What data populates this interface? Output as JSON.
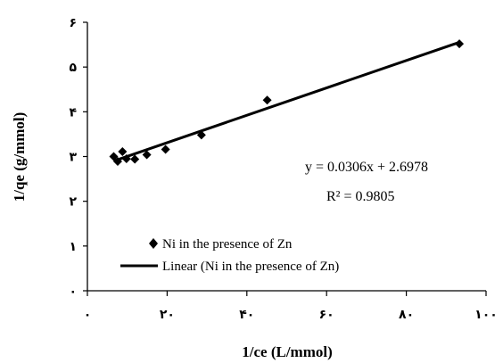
{
  "chart_data": {
    "type": "scatter",
    "xlabel": "1/ce (L/mmol)",
    "ylabel": "1/qe (g/mmol)",
    "xlim": [
      0,
      100
    ],
    "ylim": [
      0,
      6
    ],
    "x_ticks": [
      0,
      20,
      40,
      60,
      80,
      100
    ],
    "x_tick_labels": [
      "۰",
      "۲۰",
      "۴۰",
      "۶۰",
      "۸۰",
      "۱۰۰"
    ],
    "y_ticks": [
      0,
      1,
      2,
      3,
      4,
      5,
      6
    ],
    "y_tick_labels": [
      "۰",
      "۱",
      "۲",
      "۳",
      "۴",
      "۵",
      "۶"
    ],
    "grid": false,
    "legend_position": "bottom-left",
    "series": [
      {
        "name": "Ni in the presence of Zn",
        "marker": "diamond",
        "color": "#000000",
        "x": [
          6.6,
          7.6,
          8.8,
          9.8,
          11.9,
          14.9,
          19.6,
          28.6,
          45.1,
          93.3
        ],
        "y": [
          3.0,
          2.89,
          3.11,
          2.95,
          2.94,
          3.04,
          3.16,
          3.48,
          4.26,
          5.52
        ]
      },
      {
        "name": "Linear (Ni in the presence of Zn)",
        "type": "line",
        "color": "#000000",
        "slope": 0.0306,
        "intercept": 2.6978,
        "x_range": [
          6.6,
          93.3
        ]
      }
    ],
    "annotations": {
      "equation": "y = 0.0306x + 2.6978",
      "r_squared": "R² = 0.9805"
    }
  }
}
